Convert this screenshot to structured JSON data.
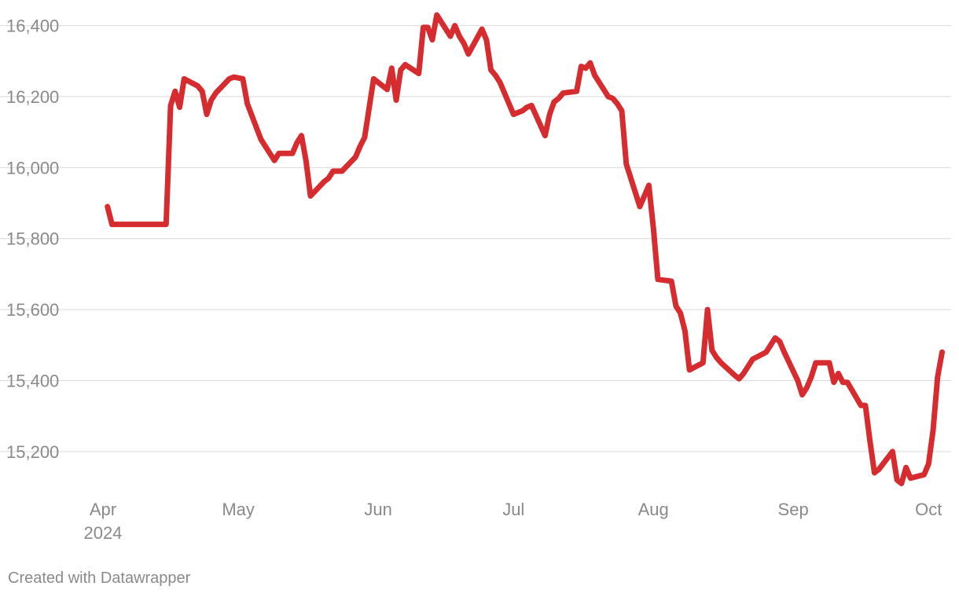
{
  "chart_data": {
    "type": "line",
    "title": "",
    "xlabel": "",
    "ylabel": "",
    "ylim": [
      15100,
      16450
    ],
    "xlim": [
      "2024-03-28",
      "2024-10-06"
    ],
    "grid": true,
    "y_ticks": [
      15200,
      15400,
      15600,
      15800,
      16000,
      16200,
      16400
    ],
    "y_tick_labels": [
      "15,200",
      "15,400",
      "15,600",
      "15,800",
      "16,000",
      "16,200",
      "16,400"
    ],
    "x_ticks": [
      "2024-04-01",
      "2024-05-01",
      "2024-06-01",
      "2024-07-01",
      "2024-08-01",
      "2024-09-01",
      "2024-10-01"
    ],
    "x_tick_labels": [
      [
        "Apr",
        "2024"
      ],
      [
        "May"
      ],
      [
        "Jun"
      ],
      [
        "Jul"
      ],
      [
        "Aug"
      ],
      [
        "Sep"
      ],
      [
        "Oct"
      ]
    ],
    "series_color": "#d62c2f",
    "series": [
      {
        "x": [
          "2024-04-02",
          "2024-04-03",
          "2024-04-04",
          "2024-04-05",
          "2024-04-08",
          "2024-04-09",
          "2024-04-10",
          "2024-04-11",
          "2024-04-12",
          "2024-04-15",
          "2024-04-16",
          "2024-04-17",
          "2024-04-18",
          "2024-04-19",
          "2024-04-22",
          "2024-04-23",
          "2024-04-24",
          "2024-04-25",
          "2024-04-26",
          "2024-04-29",
          "2024-04-30",
          "2024-05-02",
          "2024-05-03",
          "2024-05-06",
          "2024-05-07",
          "2024-05-08",
          "2024-05-09",
          "2024-05-10",
          "2024-05-13",
          "2024-05-14",
          "2024-05-15",
          "2024-05-16",
          "2024-05-17",
          "2024-05-20",
          "2024-05-21",
          "2024-05-22",
          "2024-05-23",
          "2024-05-24",
          "2024-05-27",
          "2024-05-28",
          "2024-05-29",
          "2024-05-31",
          "2024-06-03",
          "2024-06-04",
          "2024-06-05",
          "2024-06-06",
          "2024-06-07",
          "2024-06-10",
          "2024-06-11",
          "2024-06-12",
          "2024-06-13",
          "2024-06-14",
          "2024-06-17",
          "2024-06-18",
          "2024-06-19",
          "2024-06-20",
          "2024-06-21",
          "2024-06-24",
          "2024-06-25",
          "2024-06-26",
          "2024-06-27",
          "2024-06-28",
          "2024-07-01",
          "2024-07-02",
          "2024-07-03",
          "2024-07-04",
          "2024-07-05",
          "2024-07-08",
          "2024-07-09",
          "2024-07-10",
          "2024-07-11",
          "2024-07-12",
          "2024-07-15",
          "2024-07-16",
          "2024-07-17",
          "2024-07-18",
          "2024-07-19",
          "2024-07-22",
          "2024-07-23",
          "2024-07-24",
          "2024-07-25",
          "2024-07-26",
          "2024-07-29",
          "2024-07-30",
          "2024-07-31",
          "2024-08-01",
          "2024-08-02",
          "2024-08-05",
          "2024-08-06",
          "2024-08-07",
          "2024-08-08",
          "2024-08-09",
          "2024-08-12",
          "2024-08-13",
          "2024-08-14",
          "2024-08-15",
          "2024-08-16",
          "2024-08-19",
          "2024-08-20",
          "2024-08-21",
          "2024-08-22",
          "2024-08-23",
          "2024-08-26",
          "2024-08-27",
          "2024-08-28",
          "2024-08-29",
          "2024-08-30",
          "2024-09-02",
          "2024-09-03",
          "2024-09-04",
          "2024-09-05",
          "2024-09-06",
          "2024-09-09",
          "2024-09-10",
          "2024-09-11",
          "2024-09-12",
          "2024-09-13",
          "2024-09-16",
          "2024-09-17",
          "2024-09-18",
          "2024-09-19",
          "2024-09-20",
          "2024-09-23",
          "2024-09-24",
          "2024-09-25",
          "2024-09-26",
          "2024-09-27",
          "2024-09-30",
          "2024-10-01",
          "2024-10-02",
          "2024-10-03",
          "2024-10-04"
        ],
        "values": [
          15890,
          15840,
          15840,
          15840,
          15840,
          15840,
          15840,
          15840,
          15840,
          15840,
          16175,
          16215,
          16170,
          16250,
          16230,
          16215,
          16150,
          16190,
          16210,
          16250,
          16255,
          16250,
          16180,
          16080,
          16060,
          16040,
          16020,
          16040,
          16040,
          16070,
          16090,
          16020,
          15920,
          15960,
          15970,
          15990,
          15990,
          15990,
          16030,
          16060,
          16085,
          16250,
          16220,
          16280,
          16190,
          16275,
          16290,
          16265,
          16395,
          16395,
          16360,
          16430,
          16370,
          16400,
          16370,
          16350,
          16320,
          16390,
          16360,
          16275,
          16260,
          16240,
          16150,
          16155,
          16160,
          16170,
          16175,
          16090,
          16150,
          16185,
          16195,
          16210,
          16215,
          16285,
          16280,
          16295,
          16260,
          16200,
          16195,
          16180,
          16160,
          16010,
          15890,
          15920,
          15950,
          15830,
          15685,
          15680,
          15610,
          15590,
          15540,
          15430,
          15450,
          15600,
          15485,
          15465,
          15450,
          15415,
          15405,
          15420,
          15440,
          15460,
          15480,
          15500,
          15520,
          15510,
          15480,
          15400,
          15360,
          15380,
          15410,
          15450,
          15450,
          15395,
          15420,
          15395,
          15395,
          15330,
          15330,
          15230,
          15140,
          15150,
          15200,
          15120,
          15110,
          15155,
          15125,
          15135,
          15165,
          15260,
          15410,
          15480
        ]
      }
    ]
  },
  "footer": {
    "credit": "Created with Datawrapper"
  }
}
